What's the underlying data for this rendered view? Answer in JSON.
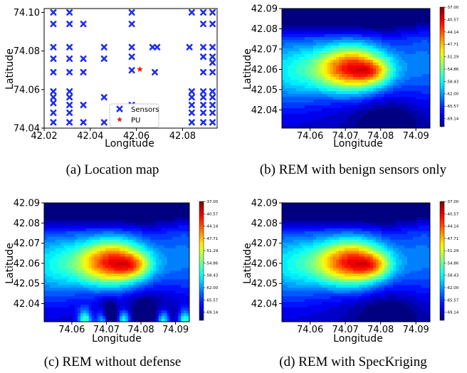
{
  "colors": {
    "sensor": "#1f2fe8",
    "pu": "#e8201a",
    "colormap": [
      "#00007f",
      "#0000ff",
      "#007fff",
      "#00ffff",
      "#7fff7f",
      "#ffff00",
      "#ff7f00",
      "#ff0000",
      "#7f0000"
    ]
  },
  "chart_data": [
    {
      "type": "scatter",
      "caption": "(a) Location map",
      "xlabel": "Longitude",
      "ylabel": "Latitude",
      "xlim": [
        42.02,
        42.095
      ],
      "ylim": [
        74.04,
        74.102
      ],
      "xticks": [
        "42.02",
        "42.04",
        "42.06",
        "42.08"
      ],
      "xtick_values": [
        42.02,
        42.04,
        42.06,
        42.08
      ],
      "yticks": [
        "74.04",
        "74.06",
        "74.08",
        "74.10"
      ],
      "ytick_values": [
        74.04,
        74.06,
        74.08,
        74.1
      ],
      "legend": [
        "Sensors",
        "PU"
      ],
      "legend_position": "lower-center",
      "series": [
        {
          "name": "Sensors",
          "marker": "x",
          "points": [
            [
              42.024,
              74.1
            ],
            [
              42.024,
              74.094
            ],
            [
              42.024,
              74.082
            ],
            [
              42.024,
              74.076
            ],
            [
              42.024,
              74.069
            ],
            [
              42.024,
              74.059
            ],
            [
              42.024,
              74.056
            ],
            [
              42.024,
              74.053
            ],
            [
              42.024,
              74.048
            ],
            [
              42.024,
              74.043
            ],
            [
              42.031,
              74.1
            ],
            [
              42.031,
              74.094
            ],
            [
              42.031,
              74.082
            ],
            [
              42.031,
              74.076
            ],
            [
              42.031,
              74.069
            ],
            [
              42.031,
              74.059
            ],
            [
              42.031,
              74.056
            ],
            [
              42.031,
              74.052
            ],
            [
              42.031,
              74.048
            ],
            [
              42.031,
              74.043
            ],
            [
              42.037,
              74.094
            ],
            [
              42.037,
              74.076
            ],
            [
              42.037,
              74.069
            ],
            [
              42.037,
              74.052
            ],
            [
              42.037,
              74.043
            ],
            [
              42.046,
              74.082
            ],
            [
              42.046,
              74.076
            ],
            [
              42.046,
              74.056
            ],
            [
              42.046,
              74.043
            ],
            [
              42.058,
              74.1
            ],
            [
              42.058,
              74.094
            ],
            [
              42.058,
              74.082
            ],
            [
              42.058,
              74.077
            ],
            [
              42.058,
              74.07
            ],
            [
              42.058,
              74.052
            ],
            [
              42.067,
              74.082
            ],
            [
              42.068,
              74.069
            ],
            [
              42.069,
              74.082
            ],
            [
              42.083,
              74.082
            ],
            [
              42.084,
              74.1
            ],
            [
              42.084,
              74.059
            ],
            [
              42.084,
              74.056
            ],
            [
              42.084,
              74.052
            ],
            [
              42.084,
              74.048
            ],
            [
              42.084,
              74.043
            ],
            [
              42.089,
              74.1
            ],
            [
              42.089,
              74.094
            ],
            [
              42.089,
              74.082
            ],
            [
              42.089,
              74.077
            ],
            [
              42.089,
              74.069
            ],
            [
              42.089,
              74.059
            ],
            [
              42.089,
              74.056
            ],
            [
              42.089,
              74.052
            ],
            [
              42.089,
              74.048
            ],
            [
              42.089,
              74.043
            ],
            [
              42.093,
              74.1
            ],
            [
              42.093,
              74.094
            ],
            [
              42.093,
              74.082
            ],
            [
              42.093,
              74.077
            ],
            [
              42.093,
              74.074
            ],
            [
              42.093,
              74.069
            ],
            [
              42.093,
              74.059
            ],
            [
              42.093,
              74.056
            ],
            [
              42.093,
              74.052
            ],
            [
              42.093,
              74.048
            ],
            [
              42.093,
              74.043
            ]
          ]
        },
        {
          "name": "PU",
          "marker": "star",
          "points": [
            [
              42.0615,
              74.0705
            ]
          ]
        }
      ]
    },
    {
      "type": "heatmap",
      "caption": "(b) REM with benign sensors only",
      "variant": "benign",
      "xlabel": "Longitude",
      "ylabel": "Latitude",
      "xlim": [
        74.052,
        74.094
      ],
      "ylim": [
        42.031,
        42.09
      ],
      "xticks": [
        "74.06",
        "74.07",
        "74.08",
        "74.09"
      ],
      "xtick_values": [
        74.06,
        74.07,
        74.08,
        74.09
      ],
      "yticks": [
        "42.04",
        "42.05",
        "42.06",
        "42.07",
        "42.08",
        "42.09"
      ],
      "ytick_values": [
        42.04,
        42.05,
        42.06,
        42.07,
        42.08,
        42.09
      ],
      "zlim": [
        -71.5,
        -37.0
      ],
      "colorbar_ticks": [
        "-37.00",
        "-40.57",
        "-44.14",
        "-47.71",
        "-51.29",
        "-54.86",
        "-58.43",
        "-62.00",
        "-65.57",
        "-69.14"
      ],
      "colorbar_values": [
        -37.0,
        -40.57,
        -44.14,
        -47.71,
        -51.29,
        -54.86,
        -58.43,
        -62.0,
        -65.57,
        -69.14
      ]
    },
    {
      "type": "heatmap",
      "caption": "(c) REM without defense",
      "variant": "attack",
      "xlabel": "Longitude",
      "ylabel": "Latitude",
      "xlim": [
        74.052,
        74.094
      ],
      "ylim": [
        42.031,
        42.09
      ],
      "xticks": [
        "74.06",
        "74.07",
        "74.08",
        "74.09"
      ],
      "xtick_values": [
        74.06,
        74.07,
        74.08,
        74.09
      ],
      "yticks": [
        "42.04",
        "42.05",
        "42.06",
        "42.07",
        "42.08",
        "42.09"
      ],
      "ytick_values": [
        42.04,
        42.05,
        42.06,
        42.07,
        42.08,
        42.09
      ],
      "zlim": [
        -71.5,
        -37.0
      ],
      "colorbar_ticks": [
        "-37.00",
        "-40.57",
        "-44.14",
        "-47.71",
        "-51.29",
        "-54.86",
        "-58.43",
        "-62.00",
        "-65.57",
        "-69.14"
      ],
      "colorbar_values": [
        -37.0,
        -40.57,
        -44.14,
        -47.71,
        -51.29,
        -54.86,
        -58.43,
        -62.0,
        -65.57,
        -69.14
      ]
    },
    {
      "type": "heatmap",
      "caption": "(d) REM with SpecKriging",
      "variant": "benign",
      "xlabel": "Longitude",
      "ylabel": "Latitude",
      "xlim": [
        74.052,
        74.094
      ],
      "ylim": [
        42.031,
        42.09
      ],
      "xticks": [
        "74.06",
        "74.07",
        "74.08",
        "74.09"
      ],
      "xtick_values": [
        74.06,
        74.07,
        74.08,
        74.09
      ],
      "yticks": [
        "42.04",
        "42.05",
        "42.06",
        "42.07",
        "42.08",
        "42.09"
      ],
      "ytick_values": [
        42.04,
        42.05,
        42.06,
        42.07,
        42.08,
        42.09
      ],
      "zlim": [
        -71.5,
        -37.0
      ],
      "colorbar_ticks": [
        "-37.00",
        "-40.57",
        "-44.14",
        "-47.71",
        "-51.29",
        "-54.86",
        "-58.43",
        "-62.00",
        "-65.57",
        "-69.14"
      ],
      "colorbar_values": [
        -37.0,
        -40.57,
        -44.14,
        -47.71,
        -51.29,
        -54.86,
        -58.43,
        -62.0,
        -65.57,
        -69.14
      ]
    }
  ]
}
